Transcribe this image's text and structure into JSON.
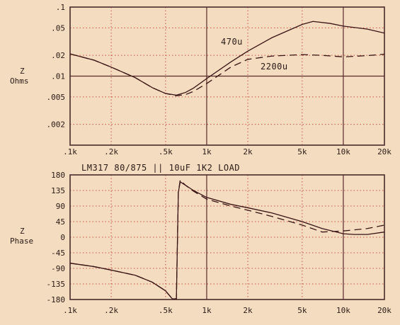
{
  "chart_data": [
    {
      "type": "line",
      "xscale": "log",
      "yscale": "log",
      "xlim": [
        100,
        20000
      ],
      "ylim": [
        0.001,
        0.1
      ],
      "xticks": [
        100,
        200,
        500,
        1000,
        2000,
        5000,
        10000,
        20000
      ],
      "xtick_labels": [
        ".1k",
        ".2k",
        ".5k",
        "1k",
        "2k",
        "5k",
        "10k",
        "20k"
      ],
      "yticks": [
        0.1,
        0.05,
        0.02,
        0.01,
        0.005,
        0.002
      ],
      "ytick_labels": [
        ".1",
        ".05",
        ".02",
        ".01",
        ".005",
        ".002"
      ],
      "ylabel": [
        "Z",
        "Ohms"
      ],
      "series": [
        {
          "name": "470u",
          "style": "solid",
          "x": [
            100,
            150,
            200,
            300,
            400,
            500,
            600,
            700,
            800,
            1000,
            1500,
            2000,
            3000,
            5000,
            6000,
            8000,
            10000,
            15000,
            20000
          ],
          "y": [
            0.021,
            0.017,
            0.0135,
            0.0095,
            0.0068,
            0.0056,
            0.0053,
            0.0058,
            0.0067,
            0.0092,
            0.016,
            0.023,
            0.036,
            0.056,
            0.062,
            0.058,
            0.053,
            0.048,
            0.042
          ]
        },
        {
          "name": "2200u",
          "style": "dashed",
          "x": [
            100,
            150,
            200,
            300,
            400,
            500,
            600,
            700,
            800,
            1000,
            1500,
            2000,
            3000,
            5000,
            7000,
            10000,
            15000,
            20000
          ],
          "y": [
            0.021,
            0.017,
            0.0135,
            0.0095,
            0.0068,
            0.0056,
            0.0052,
            0.0054,
            0.006,
            0.0078,
            0.0135,
            0.0175,
            0.0195,
            0.0205,
            0.02,
            0.019,
            0.0198,
            0.0208
          ]
        }
      ],
      "annotations": [
        "470u",
        "2200u"
      ]
    },
    {
      "type": "line",
      "xscale": "log",
      "xlim": [
        100,
        20000
      ],
      "ylim": [
        -180,
        180
      ],
      "xticks": [
        100,
        200,
        500,
        1000,
        2000,
        5000,
        10000,
        20000
      ],
      "xtick_labels": [
        ".1k",
        ".2k",
        ".5k",
        "1k",
        "2k",
        "5k",
        "10k",
        "20k"
      ],
      "yticks": [
        180,
        135,
        90,
        45,
        0,
        -45,
        -90,
        -135,
        -180
      ],
      "ytick_labels": [
        "180",
        "135",
        "90",
        "45",
        "0",
        "-45",
        "-90",
        "-135",
        "-180"
      ],
      "ylabel": [
        "Z",
        "Phase"
      ],
      "title": "LM317 80/875 || 10uF  1K2 LOAD",
      "series": [
        {
          "style": "solid",
          "x": [
            100,
            150,
            200,
            300,
            400,
            500,
            560,
            600,
            620,
            640,
            700,
            800,
            1000,
            1500,
            2000,
            3000,
            5000,
            7000,
            10000,
            12000,
            15000,
            20000
          ],
          "y": [
            -75,
            -85,
            -95,
            -110,
            -130,
            -155,
            -178,
            -178,
            130,
            160,
            150,
            135,
            115,
            95,
            85,
            70,
            45,
            25,
            10,
            8,
            8,
            15
          ],
          "breaks": [
            7
          ]
        },
        {
          "style": "dashed",
          "x": [
            100,
            150,
            200,
            300,
            400,
            500,
            560,
            600,
            620,
            640,
            700,
            800,
            1000,
            1500,
            2000,
            3000,
            5000,
            7000,
            10000,
            15000,
            20000
          ],
          "y": [
            -75,
            -85,
            -95,
            -110,
            -130,
            -155,
            -178,
            -178,
            130,
            165,
            150,
            133,
            110,
            90,
            78,
            60,
            35,
            15,
            18,
            25,
            35
          ],
          "breaks": [
            7
          ]
        }
      ]
    }
  ]
}
